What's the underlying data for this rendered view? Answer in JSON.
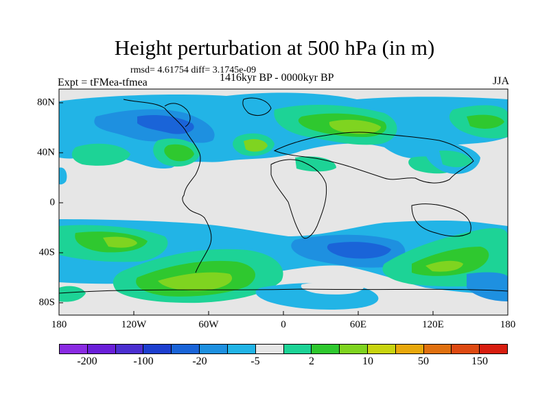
{
  "figure": {
    "title": "Height perturbation at 500 hPa (in m)",
    "stats": "rmsd= 4.61754 diff= 3.1745e-09",
    "experiment": "Expt = tFMea-tfmea",
    "period": "1416kyr BP - 0000kyr BP",
    "season": "JJA"
  },
  "axes": {
    "x_ticks": [
      "180",
      "120W",
      "60W",
      "0",
      "60E",
      "120E",
      "180"
    ],
    "y_ticks": [
      "80N",
      "40N",
      "0",
      "40S",
      "80S"
    ]
  },
  "colorbar": {
    "colors": [
      "#8a2be2",
      "#6a1fd9",
      "#4b2fd0",
      "#1e3fcf",
      "#1a64d8",
      "#1e90e0",
      "#22b4e6",
      "#e6e6e6",
      "#1dd396",
      "#2fc82f",
      "#7fd420",
      "#c8d410",
      "#e8a80c",
      "#e07010",
      "#de4a12",
      "#d81e10"
    ],
    "labels": [
      "-200",
      "-100",
      "-20",
      "-5",
      "2",
      "10",
      "50",
      "150"
    ]
  }
}
